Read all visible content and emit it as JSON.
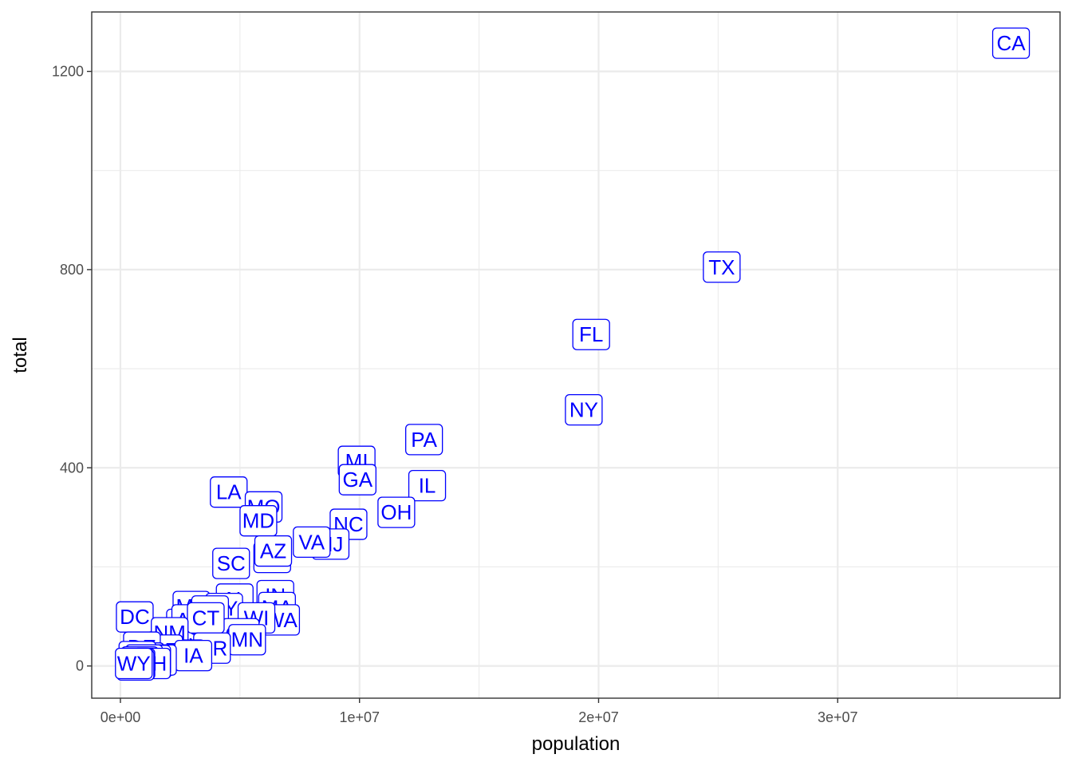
{
  "chart_data": {
    "type": "scatter",
    "title": "",
    "xlabel": "population",
    "ylabel": "total",
    "xlim": [
      -1200000,
      39300000
    ],
    "ylim": [
      -65,
      1320
    ],
    "x_ticks": [
      0,
      10000000,
      20000000,
      30000000
    ],
    "x_tick_labels": [
      "0e+00",
      "1e+07",
      "2e+07",
      "3e+07"
    ],
    "y_ticks": [
      0,
      400,
      800,
      1200
    ],
    "y_tick_labels": [
      "0",
      "400",
      "800",
      "1200"
    ],
    "grid": true,
    "label_color": "#0000ff",
    "points": [
      {
        "label": "CA",
        "x": 37250000,
        "y": 1257
      },
      {
        "label": "TX",
        "x": 25150000,
        "y": 805
      },
      {
        "label": "FL",
        "x": 19690000,
        "y": 669
      },
      {
        "label": "NY",
        "x": 19380000,
        "y": 517
      },
      {
        "label": "PA",
        "x": 12700000,
        "y": 457
      },
      {
        "label": "MI",
        "x": 9880000,
        "y": 413
      },
      {
        "label": "GA",
        "x": 9920000,
        "y": 376
      },
      {
        "label": "IL",
        "x": 12830000,
        "y": 364
      },
      {
        "label": "LA",
        "x": 4530000,
        "y": 351
      },
      {
        "label": "MO",
        "x": 5990000,
        "y": 321
      },
      {
        "label": "OH",
        "x": 11540000,
        "y": 310
      },
      {
        "label": "MD",
        "x": 5770000,
        "y": 293
      },
      {
        "label": "NC",
        "x": 9540000,
        "y": 286
      },
      {
        "label": "NJ",
        "x": 8790000,
        "y": 246
      },
      {
        "label": "VA",
        "x": 8000000,
        "y": 250
      },
      {
        "label": "TN",
        "x": 6350000,
        "y": 219
      },
      {
        "label": "SC",
        "x": 4630000,
        "y": 207
      },
      {
        "label": "AZ",
        "x": 6390000,
        "y": 232
      },
      {
        "label": "IN",
        "x": 6480000,
        "y": 142
      },
      {
        "label": "AL",
        "x": 4780000,
        "y": 135
      },
      {
        "label": "MA",
        "x": 6550000,
        "y": 118
      },
      {
        "label": "MS",
        "x": 2970000,
        "y": 120
      },
      {
        "label": "KY",
        "x": 4340000,
        "y": 116
      },
      {
        "label": "WA",
        "x": 6720000,
        "y": 93
      },
      {
        "label": "OK",
        "x": 3750000,
        "y": 111
      },
      {
        "label": "WI",
        "x": 5690000,
        "y": 97
      },
      {
        "label": "DC",
        "x": 600000,
        "y": 99
      },
      {
        "label": "CO",
        "x": 5030000,
        "y": 65
      },
      {
        "label": "NV",
        "x": 2700000,
        "y": 84
      },
      {
        "label": "AR",
        "x": 2920000,
        "y": 93
      },
      {
        "label": "KS",
        "x": 2850000,
        "y": 63
      },
      {
        "label": "CT",
        "x": 3570000,
        "y": 97
      },
      {
        "label": "NM",
        "x": 2060000,
        "y": 67
      },
      {
        "label": "MN",
        "x": 5300000,
        "y": 53
      },
      {
        "label": "OR",
        "x": 3830000,
        "y": 36
      },
      {
        "label": "UT",
        "x": 2760000,
        "y": 22
      },
      {
        "label": "WV",
        "x": 1850000,
        "y": 27
      },
      {
        "label": "NE",
        "x": 1830000,
        "y": 32
      },
      {
        "label": "IA",
        "x": 3050000,
        "y": 21
      },
      {
        "label": "DE",
        "x": 900000,
        "y": 38
      },
      {
        "label": "RI",
        "x": 1050000,
        "y": 16
      },
      {
        "label": "HI",
        "x": 1360000,
        "y": 7
      },
      {
        "label": "AK",
        "x": 710000,
        "y": 19
      },
      {
        "label": "ID",
        "x": 1570000,
        "y": 12
      },
      {
        "label": "ME",
        "x": 1330000,
        "y": 11
      },
      {
        "label": "MT",
        "x": 990000,
        "y": 12
      },
      {
        "label": "SD",
        "x": 810000,
        "y": 8
      },
      {
        "label": "NH",
        "x": 1320000,
        "y": 5
      },
      {
        "label": "ND",
        "x": 670000,
        "y": 4
      },
      {
        "label": "VT",
        "x": 630000,
        "y": 2
      },
      {
        "label": "WY",
        "x": 560000,
        "y": 5
      }
    ]
  }
}
